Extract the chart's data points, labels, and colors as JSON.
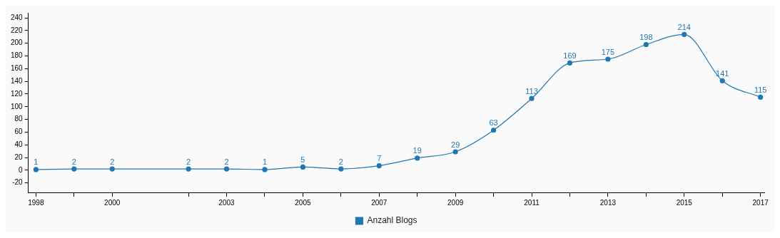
{
  "chart_data": {
    "type": "line",
    "x": [
      1998,
      1999,
      2000,
      2002,
      2003,
      2004,
      2005,
      2006,
      2007,
      2008,
      2009,
      2010,
      2011,
      2012,
      2013,
      2014,
      2015,
      2016,
      2017
    ],
    "series": [
      {
        "name": "Anzahl Blogs",
        "color": "#1f77b4",
        "values": [
          1,
          2,
          2,
          2,
          2,
          1,
          5,
          2,
          7,
          19,
          29,
          63,
          113,
          169,
          175,
          198,
          214,
          141,
          115
        ]
      }
    ],
    "xlim": [
      1997.8,
      2017.1
    ],
    "xticks": [
      1998,
      {
        "value": 1999,
        "label": null
      },
      2000,
      {
        "value": 2002,
        "label": null
      },
      2003,
      {
        "value": 2004,
        "label": null
      },
      2005,
      {
        "value": 2006,
        "label": null
      },
      2007,
      {
        "value": 2008,
        "label": null
      },
      2009,
      {
        "value": 2010,
        "label": null
      },
      2011,
      {
        "value": 2012,
        "label": null
      },
      2013,
      {
        "value": 2014,
        "label": null
      },
      2015,
      {
        "value": 2016,
        "label": null
      },
      2017
    ],
    "ylim": [
      -35,
      248
    ],
    "yticks": [
      -20,
      0,
      20,
      40,
      60,
      80,
      100,
      120,
      140,
      160,
      180,
      200,
      220,
      240
    ],
    "data_labels": true,
    "grid": false,
    "legend": "bottom",
    "marker": "circle",
    "line_style": "solid"
  }
}
